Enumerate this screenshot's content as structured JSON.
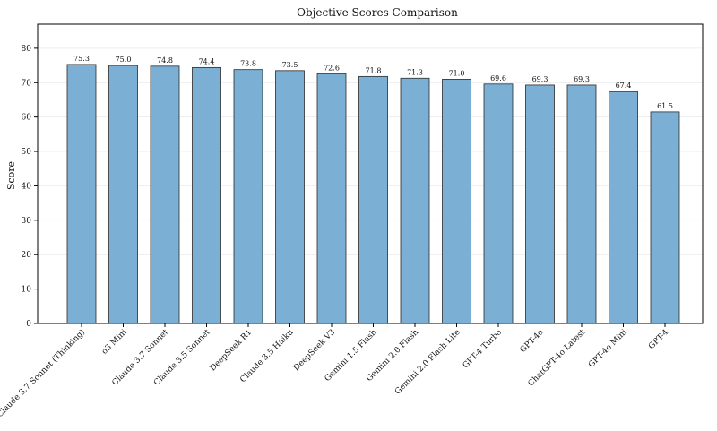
{
  "chart_data": {
    "type": "bar",
    "title": "Objective Scores Comparison",
    "xlabel": "",
    "ylabel": "Score",
    "ylim": [
      0,
      87
    ],
    "yticks": [
      0,
      10,
      20,
      30,
      40,
      50,
      60,
      70,
      80
    ],
    "grid": true,
    "color": "#7bafd4",
    "categories": [
      "Claude 3.7 Sonnet (Thinking)",
      "o3 Mini",
      "Claude 3.7 Sonnet",
      "Claude 3.5 Sonnet",
      "DeepSeek R1",
      "Claude 3.5 Haiku",
      "DeepSeek V3",
      "Gemini 1.5 Flash",
      "Gemini 2.0 Flash",
      "Gemini 2.0 Flash Lite",
      "GPT-4 Turbo",
      "GPT-4o",
      "ChatGPT-4o Latest",
      "GPT-4o Mini",
      "GPT-4"
    ],
    "values": [
      75.3,
      75.0,
      74.8,
      74.4,
      73.8,
      73.5,
      72.6,
      71.8,
      71.3,
      71.0,
      69.6,
      69.3,
      69.3,
      67.4,
      61.5
    ],
    "value_labels": [
      "75.3",
      "75.0",
      "74.8",
      "74.4",
      "73.8",
      "73.5",
      "72.6",
      "71.8",
      "71.3",
      "71.0",
      "69.6",
      "69.3",
      "69.3",
      "67.4",
      "61.5"
    ]
  }
}
